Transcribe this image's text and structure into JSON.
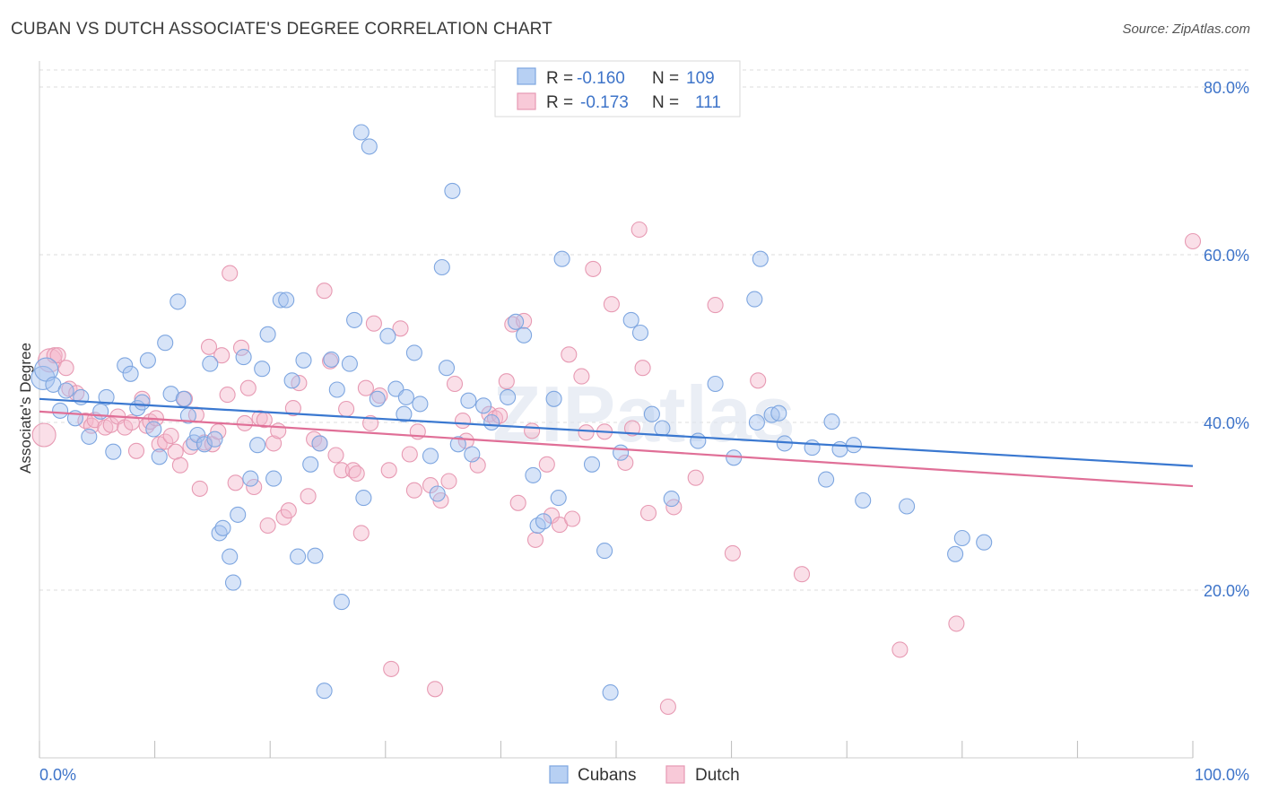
{
  "title": "CUBAN VS DUTCH ASSOCIATE'S DEGREE CORRELATION CHART",
  "source": "Source: ZipAtlas.com",
  "watermark": "ZIPatlas",
  "colors": {
    "blue_fill": "#a7c4ef",
    "blue_stroke": "#7ea6e0",
    "blue_line": "#3a78d0",
    "pink_fill": "#f4b8cb",
    "pink_stroke": "#e79ab3",
    "pink_line": "#e06f97",
    "axis_label": "#3e74c9",
    "grid": "#dddddd"
  },
  "legend": {
    "rows": [
      {
        "r_label": "R = ",
        "r_value": "-0.160",
        "n_label": "N = ",
        "n_value": "109"
      },
      {
        "r_label": "R = ",
        "r_value": "-0.173",
        "n_label": "N = ",
        "n_value": "111"
      }
    ]
  },
  "bottom_legend": [
    "Cubans",
    "Dutch"
  ],
  "chart_data": {
    "type": "scatter",
    "title": "CUBAN VS DUTCH ASSOCIATE'S DEGREE CORRELATION CHART",
    "xlabel": "",
    "ylabel": "Associate's Degree",
    "xlim": [
      0,
      100
    ],
    "ylim": [
      0,
      82
    ],
    "x_tick_labels": [
      "0.0%",
      "100.0%"
    ],
    "y_ticks": [
      20,
      40,
      60,
      80
    ],
    "y_tick_labels": [
      "20.0%",
      "40.0%",
      "60.0%",
      "80.0%"
    ],
    "grid": "horizontal dashed",
    "legend_position": "top-center",
    "series": [
      {
        "name": "Cubans",
        "r": -0.16,
        "n": 109,
        "trend": {
          "x": [
            0,
            100
          ],
          "y": [
            42.8,
            34.8
          ]
        },
        "points": [
          [
            0.3,
            45.3
          ],
          [
            0.6,
            46.3
          ],
          [
            1.2,
            44.5
          ],
          [
            1.8,
            41.4
          ],
          [
            2.3,
            43.8
          ],
          [
            3.1,
            40.5
          ],
          [
            3.6,
            43.0
          ],
          [
            4.3,
            38.3
          ],
          [
            5.3,
            41.3
          ],
          [
            5.8,
            43.0
          ],
          [
            6.4,
            36.5
          ],
          [
            7.4,
            46.8
          ],
          [
            7.9,
            45.8
          ],
          [
            8.5,
            41.7
          ],
          [
            8.9,
            42.4
          ],
          [
            9.4,
            47.4
          ],
          [
            9.9,
            39.2
          ],
          [
            10.4,
            35.9
          ],
          [
            10.9,
            49.5
          ],
          [
            11.4,
            43.4
          ],
          [
            12.0,
            54.4
          ],
          [
            12.5,
            42.8
          ],
          [
            12.9,
            40.8
          ],
          [
            13.4,
            37.6
          ],
          [
            13.7,
            38.5
          ],
          [
            14.3,
            37.4
          ],
          [
            14.8,
            47.0
          ],
          [
            15.2,
            38.0
          ],
          [
            15.6,
            26.8
          ],
          [
            15.9,
            27.4
          ],
          [
            16.5,
            24.0
          ],
          [
            16.8,
            20.9
          ],
          [
            17.2,
            29.0
          ],
          [
            17.7,
            47.8
          ],
          [
            18.3,
            33.3
          ],
          [
            18.9,
            37.3
          ],
          [
            19.3,
            46.4
          ],
          [
            19.8,
            50.5
          ],
          [
            20.3,
            33.3
          ],
          [
            20.9,
            54.6
          ],
          [
            21.4,
            54.6
          ],
          [
            21.9,
            45.0
          ],
          [
            22.4,
            24.0
          ],
          [
            22.9,
            47.4
          ],
          [
            23.5,
            35.0
          ],
          [
            23.9,
            24.1
          ],
          [
            24.3,
            37.5
          ],
          [
            24.7,
            8.0
          ],
          [
            25.3,
            47.5
          ],
          [
            25.8,
            43.9
          ],
          [
            26.2,
            18.6
          ],
          [
            26.9,
            47.0
          ],
          [
            27.3,
            52.2
          ],
          [
            27.9,
            74.6
          ],
          [
            28.1,
            31.0
          ],
          [
            28.6,
            72.9
          ],
          [
            29.3,
            42.8
          ],
          [
            30.2,
            50.3
          ],
          [
            30.9,
            44.0
          ],
          [
            31.6,
            41.0
          ],
          [
            31.8,
            43.0
          ],
          [
            32.5,
            48.3
          ],
          [
            33.0,
            42.2
          ],
          [
            33.9,
            36.0
          ],
          [
            34.5,
            31.5
          ],
          [
            34.9,
            58.5
          ],
          [
            35.3,
            46.5
          ],
          [
            35.8,
            67.6
          ],
          [
            36.3,
            37.4
          ],
          [
            37.2,
            42.6
          ],
          [
            37.5,
            36.2
          ],
          [
            38.5,
            42.0
          ],
          [
            39.2,
            40.0
          ],
          [
            40.6,
            43.0
          ],
          [
            41.3,
            52.0
          ],
          [
            42.0,
            50.4
          ],
          [
            42.8,
            33.7
          ],
          [
            43.2,
            27.7
          ],
          [
            43.7,
            28.2
          ],
          [
            44.6,
            42.8
          ],
          [
            45.0,
            31.0
          ],
          [
            45.3,
            59.5
          ],
          [
            47.9,
            35.0
          ],
          [
            49.0,
            24.7
          ],
          [
            49.5,
            7.8
          ],
          [
            50.4,
            36.4
          ],
          [
            51.3,
            52.2
          ],
          [
            52.1,
            50.7
          ],
          [
            53.1,
            41.0
          ],
          [
            54.0,
            39.3
          ],
          [
            54.8,
            30.9
          ],
          [
            57.1,
            37.8
          ],
          [
            58.6,
            44.6
          ],
          [
            60.2,
            35.8
          ],
          [
            62.0,
            54.7
          ],
          [
            62.2,
            40.0
          ],
          [
            62.5,
            59.5
          ],
          [
            63.5,
            40.9
          ],
          [
            64.1,
            41.1
          ],
          [
            64.6,
            37.5
          ],
          [
            67.0,
            37.0
          ],
          [
            68.2,
            33.2
          ],
          [
            68.7,
            40.1
          ],
          [
            69.4,
            36.8
          ],
          [
            70.6,
            37.3
          ],
          [
            71.4,
            30.7
          ],
          [
            75.2,
            30.0
          ],
          [
            79.4,
            24.3
          ],
          [
            80.0,
            26.2
          ],
          [
            81.9,
            25.7
          ]
        ]
      },
      {
        "name": "Dutch",
        "r": -0.173,
        "n": 111,
        "trend": {
          "x": [
            0,
            100
          ],
          "y": [
            41.3,
            32.4
          ]
        },
        "points": [
          [
            0.4,
            38.5
          ],
          [
            0.9,
            47.4
          ],
          [
            1.3,
            48.0
          ],
          [
            1.6,
            48.0
          ],
          [
            2.3,
            46.5
          ],
          [
            2.6,
            44.0
          ],
          [
            3.2,
            43.5
          ],
          [
            4.0,
            40.2
          ],
          [
            4.5,
            39.6
          ],
          [
            4.8,
            40.3
          ],
          [
            5.7,
            39.4
          ],
          [
            6.2,
            39.7
          ],
          [
            6.8,
            40.7
          ],
          [
            7.4,
            39.4
          ],
          [
            8.0,
            40.0
          ],
          [
            8.4,
            36.6
          ],
          [
            8.9,
            42.8
          ],
          [
            9.3,
            39.6
          ],
          [
            9.6,
            40.1
          ],
          [
            10.1,
            40.5
          ],
          [
            10.4,
            37.4
          ],
          [
            10.9,
            37.7
          ],
          [
            11.4,
            38.4
          ],
          [
            11.8,
            36.5
          ],
          [
            12.2,
            34.9
          ],
          [
            12.6,
            42.8
          ],
          [
            13.1,
            37.1
          ],
          [
            13.6,
            40.9
          ],
          [
            13.9,
            32.1
          ],
          [
            14.3,
            37.6
          ],
          [
            14.7,
            49.0
          ],
          [
            15.0,
            37.4
          ],
          [
            15.5,
            38.9
          ],
          [
            15.8,
            48.0
          ],
          [
            16.3,
            43.3
          ],
          [
            16.5,
            57.8
          ],
          [
            17.0,
            32.8
          ],
          [
            17.5,
            48.9
          ],
          [
            17.8,
            39.9
          ],
          [
            18.1,
            44.1
          ],
          [
            18.6,
            32.3
          ],
          [
            19.1,
            40.5
          ],
          [
            19.5,
            40.3
          ],
          [
            19.8,
            27.7
          ],
          [
            20.3,
            37.5
          ],
          [
            20.7,
            39.0
          ],
          [
            21.2,
            28.7
          ],
          [
            21.6,
            29.5
          ],
          [
            22.0,
            41.7
          ],
          [
            22.5,
            44.7
          ],
          [
            23.3,
            31.2
          ],
          [
            23.8,
            38.0
          ],
          [
            24.3,
            37.5
          ],
          [
            24.7,
            55.7
          ],
          [
            25.2,
            47.3
          ],
          [
            25.7,
            36.1
          ],
          [
            26.2,
            34.3
          ],
          [
            26.6,
            41.6
          ],
          [
            27.2,
            34.3
          ],
          [
            27.5,
            33.9
          ],
          [
            27.9,
            26.8
          ],
          [
            28.3,
            44.1
          ],
          [
            28.7,
            39.9
          ],
          [
            29.0,
            51.8
          ],
          [
            29.5,
            43.2
          ],
          [
            30.3,
            34.3
          ],
          [
            30.5,
            10.6
          ],
          [
            31.3,
            51.2
          ],
          [
            32.1,
            36.2
          ],
          [
            32.5,
            31.9
          ],
          [
            32.8,
            38.9
          ],
          [
            33.9,
            32.5
          ],
          [
            34.3,
            8.2
          ],
          [
            34.8,
            30.7
          ],
          [
            35.5,
            33.0
          ],
          [
            36.0,
            44.6
          ],
          [
            36.7,
            40.2
          ],
          [
            37.0,
            37.8
          ],
          [
            38.0,
            34.9
          ],
          [
            39.0,
            41.0
          ],
          [
            39.5,
            40.5
          ],
          [
            39.9,
            40.8
          ],
          [
            40.5,
            44.9
          ],
          [
            41.0,
            51.7
          ],
          [
            41.5,
            30.4
          ],
          [
            42.0,
            52.1
          ],
          [
            42.7,
            39.0
          ],
          [
            43.0,
            26.0
          ],
          [
            44.0,
            35.0
          ],
          [
            44.4,
            28.9
          ],
          [
            45.1,
            27.8
          ],
          [
            45.9,
            48.1
          ],
          [
            46.2,
            28.5
          ],
          [
            47.0,
            45.5
          ],
          [
            47.4,
            38.8
          ],
          [
            48.0,
            58.3
          ],
          [
            49.0,
            38.9
          ],
          [
            49.6,
            54.1
          ],
          [
            50.8,
            35.2
          ],
          [
            51.4,
            39.3
          ],
          [
            52.0,
            63.0
          ],
          [
            52.3,
            46.5
          ],
          [
            52.8,
            29.2
          ],
          [
            54.5,
            6.1
          ],
          [
            55.0,
            29.9
          ],
          [
            56.9,
            33.4
          ],
          [
            58.6,
            54.0
          ],
          [
            60.1,
            24.4
          ],
          [
            62.3,
            45.0
          ],
          [
            66.1,
            21.9
          ],
          [
            74.6,
            12.9
          ],
          [
            79.5,
            16.0
          ],
          [
            100.0,
            61.6
          ]
        ]
      }
    ]
  }
}
